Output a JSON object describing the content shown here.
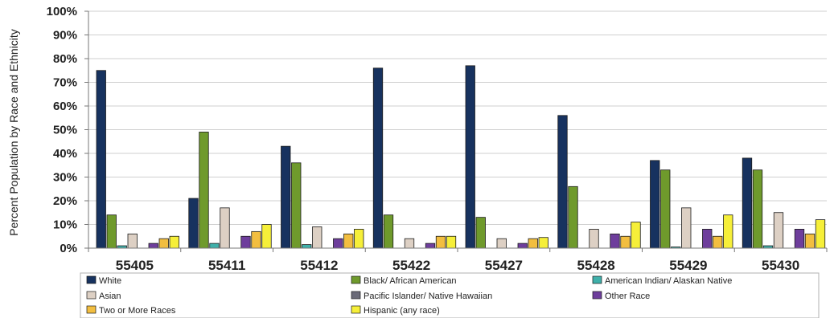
{
  "chart_data": {
    "type": "bar",
    "ylabel": "Percent Population by Race and Ethnicity",
    "ylim": [
      0,
      100
    ],
    "y_ticks": [
      "0%",
      "10%",
      "20%",
      "30%",
      "40%",
      "50%",
      "60%",
      "70%",
      "80%",
      "90%",
      "100%"
    ],
    "grid": true,
    "legend_position": "bottom",
    "categories": [
      "55405",
      "55411",
      "55412",
      "55422",
      "55427",
      "55428",
      "55429",
      "55430"
    ],
    "series": [
      {
        "name": "White",
        "color": "#17325f",
        "values": [
          75,
          21,
          43,
          76,
          77,
          56,
          37,
          38
        ]
      },
      {
        "name": "Black/ African American",
        "color": "#6f9a2c",
        "values": [
          14,
          49,
          36,
          14,
          13,
          26,
          33,
          33
        ]
      },
      {
        "name": "American Indian/ Alaskan Native",
        "color": "#3fb0aa",
        "values": [
          1,
          2,
          1.5,
          0,
          0,
          0,
          0.5,
          1
        ]
      },
      {
        "name": "Asian",
        "color": "#ddd0c4",
        "values": [
          6,
          17,
          9,
          4,
          4,
          8,
          17,
          15
        ]
      },
      {
        "name": "Pacific Islander/ Native Hawaiian",
        "color": "#6a6a78",
        "values": [
          0,
          0,
          0,
          0,
          0,
          0,
          0,
          0
        ]
      },
      {
        "name": "Other Race",
        "color": "#6e3e9c",
        "values": [
          2,
          5,
          4,
          2,
          2,
          6,
          8,
          8
        ]
      },
      {
        "name": "Two or More Races",
        "color": "#f2be40",
        "values": [
          4,
          7,
          6,
          5,
          4,
          5,
          5,
          6
        ]
      },
      {
        "name": "Hispanic (any race)",
        "color": "#f6ef39",
        "values": [
          5,
          10,
          8,
          5,
          4.5,
          11,
          14,
          12
        ]
      }
    ]
  }
}
